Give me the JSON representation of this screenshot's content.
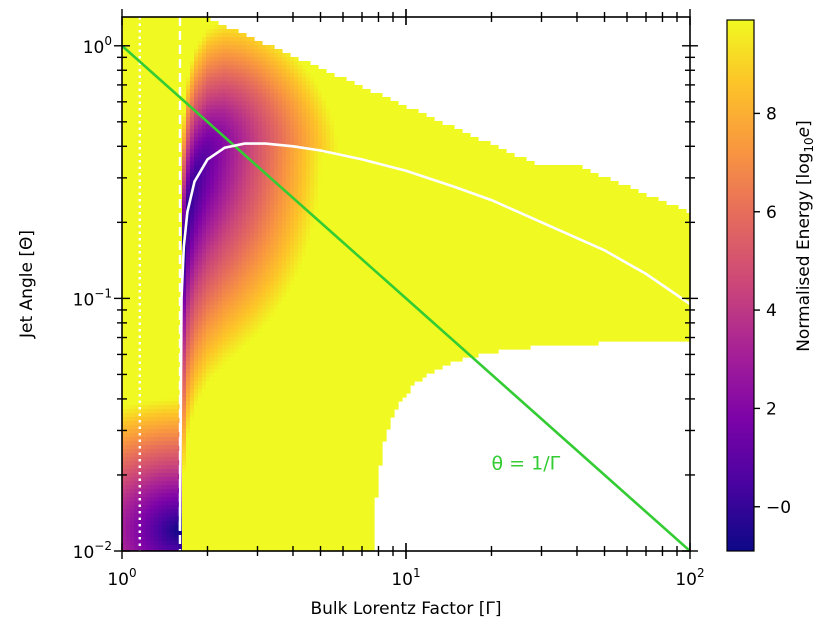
{
  "chart_data": {
    "type": "heatmap",
    "xlabel": "Bulk Lorentz Factor [Γ]",
    "ylabel": "Jet Angle [Θ]",
    "xscale": "log",
    "yscale": "log",
    "xlim": [
      1,
      100
    ],
    "ylim": [
      0.01,
      1.3
    ],
    "x_ticks": [
      {
        "value": 1,
        "base": "10",
        "exp": "0"
      },
      {
        "value": 10,
        "base": "10",
        "exp": "1"
      },
      {
        "value": 100,
        "base": "10",
        "exp": "2"
      }
    ],
    "y_ticks": [
      {
        "value": 0.01,
        "base": "10",
        "exp": "−2"
      },
      {
        "value": 0.1,
        "base": "10",
        "exp": "−1"
      },
      {
        "value": 1,
        "base": "10",
        "exp": "0"
      }
    ],
    "colormap": "plasma",
    "colorbar": {
      "label_main": "Normalised Energy [log",
      "label_sub": "10",
      "label_var": "e",
      "label_close": "]",
      "vmin": -0.9,
      "vmax": 9.9,
      "ticks": [
        "−0",
        "2",
        "4",
        "6",
        "8"
      ],
      "tick_values": [
        0,
        2,
        4,
        6,
        8
      ]
    },
    "vertical_lines": [
      {
        "x": 1.155,
        "style": "dotted",
        "color": "#ffffff"
      },
      {
        "x": 1.6,
        "style": "dashed",
        "color": "#ffffff"
      }
    ],
    "lines": [
      {
        "name": "θ = 1/Γ",
        "color": "#33cc33",
        "x": [
          1,
          100
        ],
        "y": [
          1,
          0.01
        ]
      },
      {
        "color": "#ffffff",
        "x": [
          1.6,
          1.62,
          1.65,
          1.7,
          1.8,
          2.0,
          2.3,
          2.7,
          3.2,
          4,
          5,
          7,
          10,
          15,
          20,
          30,
          50,
          70,
          100
        ],
        "y": [
          0.012,
          0.1,
          0.16,
          0.22,
          0.29,
          0.355,
          0.395,
          0.41,
          0.41,
          0.4,
          0.385,
          0.355,
          0.32,
          0.275,
          0.245,
          0.2,
          0.155,
          0.125,
          0.095
        ]
      }
    ],
    "annotations": [
      {
        "text": "θ = 1/Γ",
        "x": 20,
        "y": 0.021,
        "color": "#33cc33"
      }
    ]
  }
}
